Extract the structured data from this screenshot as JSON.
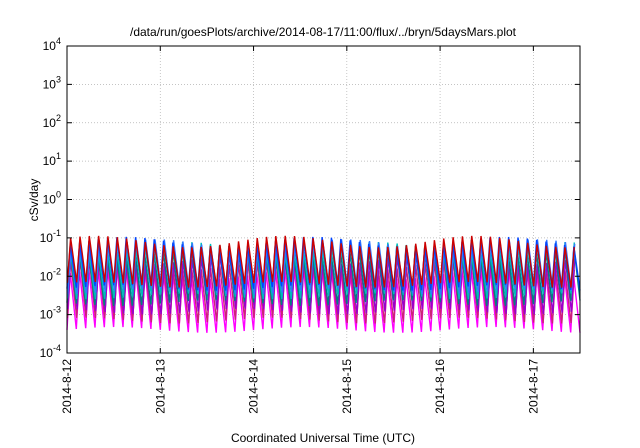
{
  "chart_data": {
    "type": "line",
    "title": "/data/run/goesPlots/archive/2014-08-17/11:00/flux/../bryn/5daysMars.plot",
    "xlabel": "Coordinated Universal Time (UTC)",
    "ylabel": "cSv/day",
    "yscale": "log",
    "ylim": [
      0.0001,
      10000
    ],
    "xlim_days": [
      0,
      5.5
    ],
    "x_ticks": [
      "2014-8-12",
      "2014-8-13",
      "2014-8-14",
      "2014-8-15",
      "2014-8-16",
      "2014-8-17"
    ],
    "y_ticks": [
      {
        "base": "10",
        "exp": "-4"
      },
      {
        "base": "10",
        "exp": "-3"
      },
      {
        "base": "10",
        "exp": "-2"
      },
      {
        "base": "10",
        "exp": "-1"
      },
      {
        "base": "10",
        "exp": "0"
      },
      {
        "base": "10",
        "exp": "1"
      },
      {
        "base": "10",
        "exp": "2"
      },
      {
        "base": "10",
        "exp": "3"
      },
      {
        "base": "10",
        "exp": "4"
      }
    ],
    "grid": true,
    "sawtooth_period_days": 0.1,
    "series": [
      {
        "color": "#ff00ff",
        "peak": 0.012,
        "trough": 0.0004
      },
      {
        "color": "#cc2277",
        "peak": 0.02,
        "trough": 0.0007
      },
      {
        "color": "#9900cc",
        "peak": 0.03,
        "trough": 0.0012
      },
      {
        "color": "#008080",
        "peak": 0.045,
        "trough": 0.002
      },
      {
        "color": "#00bbbb",
        "peak": 0.055,
        "trough": 0.003
      },
      {
        "color": "#3377ff",
        "peak": 0.065,
        "trough": 0.004
      },
      {
        "color": "#0044ff",
        "peak": 0.075,
        "trough": 0.005
      },
      {
        "color": "#cc0000",
        "peak": 0.08,
        "trough": 0.006
      }
    ]
  }
}
